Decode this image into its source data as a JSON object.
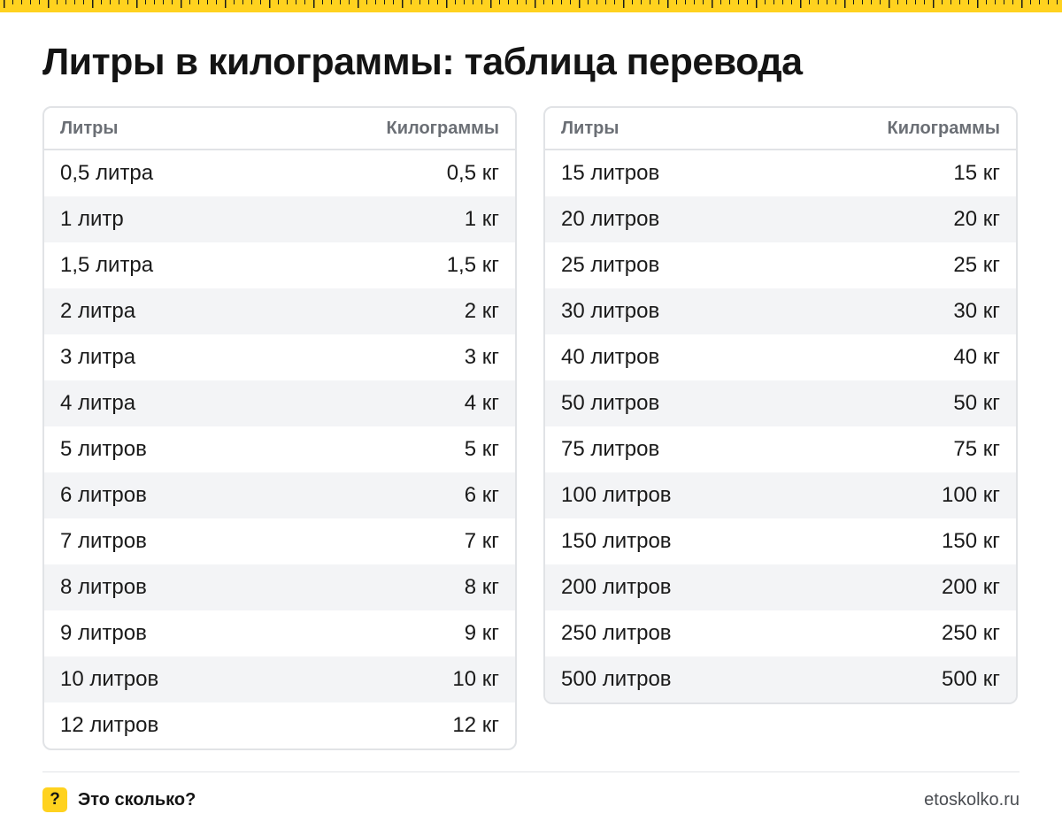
{
  "title": "Литры в килограммы: таблица перевода",
  "columns": {
    "liters": "Литры",
    "kilograms": "Килограммы"
  },
  "left_table": [
    {
      "liters": "0,5 литра",
      "kg": "0,5 кг"
    },
    {
      "liters": "1 литр",
      "kg": "1 кг"
    },
    {
      "liters": "1,5 литра",
      "kg": "1,5 кг"
    },
    {
      "liters": "2 литра",
      "kg": "2 кг"
    },
    {
      "liters": "3 литра",
      "kg": "3 кг"
    },
    {
      "liters": "4 литра",
      "kg": "4 кг"
    },
    {
      "liters": "5 литров",
      "kg": "5 кг"
    },
    {
      "liters": "6 литров",
      "kg": "6 кг"
    },
    {
      "liters": "7 литров",
      "kg": "7 кг"
    },
    {
      "liters": "8 литров",
      "kg": "8 кг"
    },
    {
      "liters": "9 литров",
      "kg": "9 кг"
    },
    {
      "liters": "10 литров",
      "kg": "10 кг"
    },
    {
      "liters": "12 литров",
      "kg": "12 кг"
    }
  ],
  "right_table": [
    {
      "liters": "15 литров",
      "kg": "15 кг"
    },
    {
      "liters": "20 литров",
      "kg": "20 кг"
    },
    {
      "liters": "25 литров",
      "kg": "25 кг"
    },
    {
      "liters": "30 литров",
      "kg": "30 кг"
    },
    {
      "liters": "40 литров",
      "kg": "40 кг"
    },
    {
      "liters": "50 литров",
      "kg": "50 кг"
    },
    {
      "liters": "75 литров",
      "kg": "75 кг"
    },
    {
      "liters": "100 литров",
      "kg": "100 кг"
    },
    {
      "liters": "150 литров",
      "kg": "150 кг"
    },
    {
      "liters": "200 литров",
      "kg": "200 кг"
    },
    {
      "liters": "250 литров",
      "kg": "250 кг"
    },
    {
      "liters": "500 литров",
      "kg": "500 кг"
    }
  ],
  "footer": {
    "badge": "?",
    "brand": "Это сколько?",
    "site": "etoskolko.ru"
  },
  "colors": {
    "accent": "#ffd21f",
    "row_alt": "#f3f4f6",
    "border": "#e1e3e6"
  },
  "icons": {
    "ruler": "ruler-strip",
    "badge": "question-badge-icon"
  }
}
